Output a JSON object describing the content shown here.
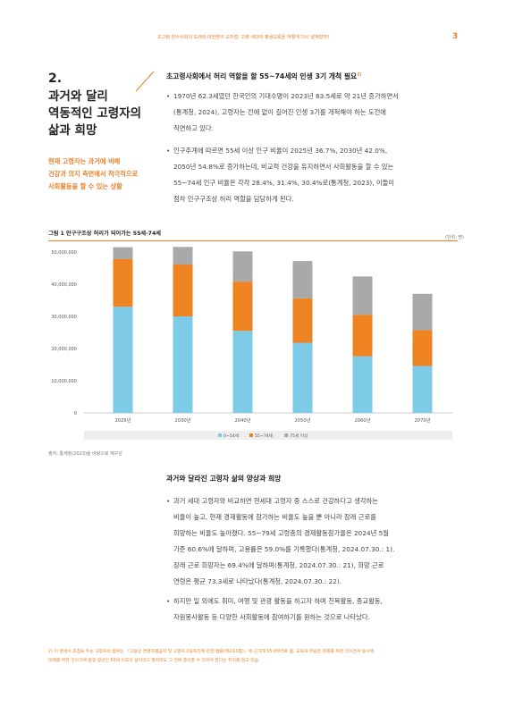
{
  "header": {
    "running_title": "초고령 장수사회의 도래와 대전환의 교차점, 고령 세대의 평생교육을 어떻게 다시 설계할까?",
    "page_number": "3"
  },
  "section": {
    "number": "2.",
    "title_lines": [
      "과거와 달리",
      "역동적인 고령자의",
      "삶과 희망"
    ],
    "subtitle_lines": [
      "현재 고령자는 과거에 비해",
      "건강과 의지 측면에서 적극적으로",
      "사회활동을 할 수 있는 상황"
    ]
  },
  "block1": {
    "heading": "초고령사회에서 허리 역할을 할 55~74세의 인생 3기 개척 필요",
    "heading_sup": "2)",
    "bullets": [
      {
        "lines": [
          "1970년 62.3세였던 한국인의 기대수명이 2023년 83.5세로 약 21년 증가하면서",
          "(통계청, 2024), 고령자는 전에 없이 길어진 인생 3기를 개척해야 하는 도전에",
          "직면하고 있다."
        ]
      },
      {
        "lines": [
          "인구추계에 따르면 55세 이상 인구 비율이 2025년 36.7%, 2030년 42.0%,",
          "2050년 54.8%로 증가하는데, 비교적 건강을 유지하면서 사회활동을 할 수 있는",
          "55~74세 인구 비율은 각각 28.4%, 31.4%, 30.4%로(통계청, 2023), 이들이",
          "점차 인구구조상 허리 역할을 담당하게 된다."
        ]
      }
    ]
  },
  "figure": {
    "label": "그림 1   인구구조상 허리가 되어가는 55세-74세",
    "unit": "(단위: 명)",
    "source": "출처: 통계청(2023)을 바탕으로 재구성"
  },
  "chart_data": {
    "type": "bar",
    "stacked": true,
    "categories": [
      "2025년",
      "2030년",
      "2040년",
      "2050년",
      "2060년",
      "2070년"
    ],
    "series": [
      {
        "name": "0~54세",
        "color": "#7ecbe8",
        "values": [
          33000000,
          30000000,
          25500000,
          21800000,
          17600000,
          14600000
        ]
      },
      {
        "name": "55~74세",
        "color": "#ef8221",
        "values": [
          14800000,
          16100000,
          15300000,
          13800000,
          12900000,
          11100000
        ]
      },
      {
        "name": "75세 이상",
        "color": "#a9a9a9",
        "values": [
          3700000,
          5500000,
          9400000,
          11600000,
          11900000,
          11300000
        ]
      }
    ],
    "yticks": [
      "0",
      "10,000,000",
      "20,000,000",
      "30,000,000",
      "40,000,000",
      "50,000,000"
    ],
    "ylim": [
      0,
      50000000
    ],
    "grid": false,
    "legend": "bottom",
    "title": "",
    "xlabel": "",
    "ylabel": ""
  },
  "block2": {
    "heading": "과거와 달라진 고령자 삶의 양상과 희망",
    "bullets": [
      {
        "lines": [
          "과거 세대 고령자와 비교하면 현세대 고령자 중 스스로 건강하다고 생각하는",
          "비율이 높고, 현재 경제활동에 참가하는 비율도 높을 뿐 아니라 장래 근로를",
          "희망하는 비율도 높아졌다. 55~79세 고령층의 경제활동참가율은 2024년 5월",
          "기준 60.6%에 달하며, 고용률은 59.0%를 기록했다(통계청, 2024.07.30.: 1).",
          "장래 근로 희망자는 69.4%에 달하며(통계청, 2024.07.30.: 21), 희망 근로",
          "연령은 평균 73.3세로 나타났다(통계청, 2024.07.30.: 22)."
        ]
      },
      {
        "lines": [
          "하지만 일 외에도 취미, 여행 및 관광 활동을 하고자 하며 친목활동, 종교활동,",
          "자원봉사활동 등 다양한 사회활동에 참여하기를 원하는 것으로 나타났다."
        ]
      }
    ]
  },
  "footnote": {
    "lines": [
      "2) 이 글에서 초점을 두는 고령자의 범위는 「고용상 연령차별금지 및 고령자고용촉진에 관한 법률(제2조1항)」에 근거해 55세부터로 봄. 교육과 학습은 현재를 위한 것이면서 동시에",
      "미래를 위한 것이기에 법정 정년인 60세 이후의 삶이라고 할지라도 그 전에 준비할 수 있어야 한다는 취지를 담고 있음."
    ]
  }
}
